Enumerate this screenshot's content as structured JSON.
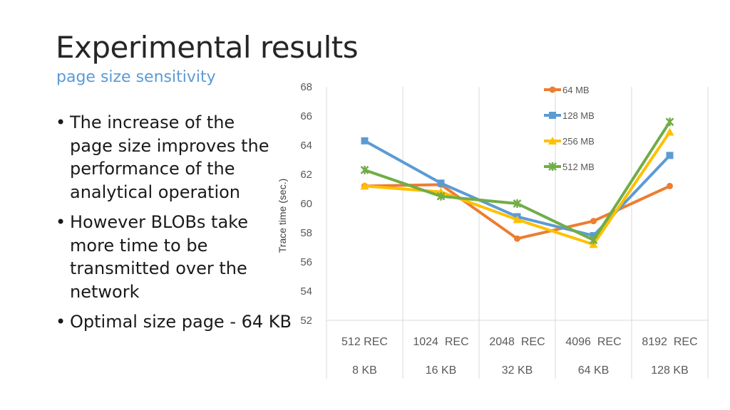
{
  "slide": {
    "title": "Experimental results",
    "subtitle": "page size sensitivity",
    "bullets": [
      "The increase of the page size improves the performance of the analytical operation",
      "However BLOBs take more time to be transmitted over the network",
      "Optimal size page - 64 KB"
    ]
  },
  "chart_data": {
    "type": "line",
    "ylabel": "Trace time (sec.)",
    "xlabel": "",
    "ylim": [
      52,
      68
    ],
    "yticks": [
      52,
      54,
      56,
      58,
      60,
      62,
      64,
      66,
      68
    ],
    "grid": "vertical",
    "legend_position": "top-right",
    "categories": [
      {
        "rec": "512 REC",
        "size": "8 KB"
      },
      {
        "rec": "1024  REC",
        "size": "16 KB"
      },
      {
        "rec": "2048  REC",
        "size": "32 KB"
      },
      {
        "rec": "4096  REC",
        "size": "64 KB"
      },
      {
        "rec": "8192  REC",
        "size": "128 KB"
      }
    ],
    "series": [
      {
        "name": "64 MB",
        "color": "#ed7d31",
        "marker": "circle",
        "values": [
          61.2,
          61.3,
          57.6,
          58.8,
          61.2
        ]
      },
      {
        "name": "128 MB",
        "color": "#5b9bd5",
        "marker": "square",
        "values": [
          64.3,
          61.4,
          59.1,
          57.8,
          63.3
        ]
      },
      {
        "name": "256 MB",
        "color": "#ffc000",
        "marker": "triangle",
        "values": [
          61.2,
          60.8,
          58.9,
          57.2,
          64.9
        ]
      },
      {
        "name": "512 MB",
        "color": "#70ad47",
        "marker": "star",
        "values": [
          62.3,
          60.5,
          60.0,
          57.5,
          65.6
        ]
      }
    ]
  }
}
